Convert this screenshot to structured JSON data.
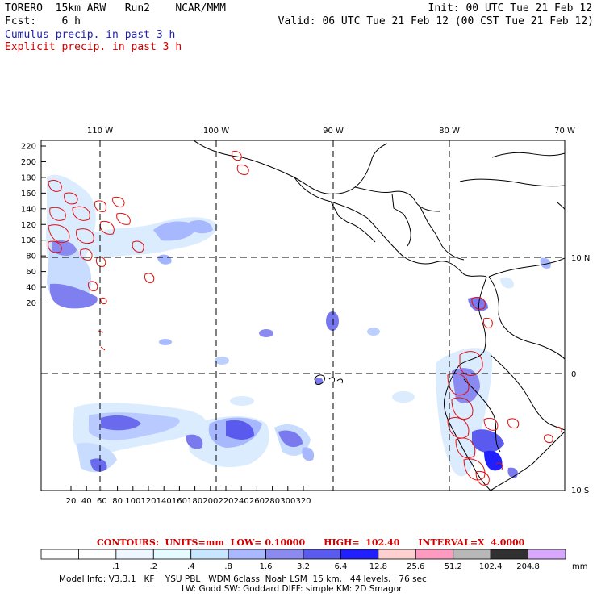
{
  "header": {
    "model": "TORERO  15km ARW   Run2    NCAR/MMM",
    "init": "Init: 00 UTC Tue 21 Feb 12",
    "fcst": "Fcst:    6 h",
    "valid": "Valid: 06 UTC Tue 21 Feb 12 (00 CST Tue 21 Feb 12)",
    "legend_cumulus": "Cumulus precip. in past 3 h",
    "legend_explicit": "Explicit precip. in past 3 h"
  },
  "map": {
    "lon_labels": [
      "110 W",
      "100 W",
      "90 W",
      "80 W",
      "70 W"
    ],
    "lat_labels": [
      "10 N",
      "0",
      "10 S"
    ],
    "y_ticks": [
      "220",
      "200",
      "180",
      "160",
      "140",
      "120",
      "100",
      "80",
      "60",
      "40",
      "20"
    ],
    "x_ticks": [
      "20",
      "40",
      "60",
      "80",
      "100",
      "120",
      "140",
      "160",
      "180",
      "200",
      "220",
      "240",
      "260",
      "280",
      "300",
      "320"
    ]
  },
  "contours_note": "CONTOURS:  UNITS=mm  LOW= 0.10000      HIGH=  102.40      INTERVAL=X  4.0000",
  "colorbar": {
    "labels": [
      ".1",
      ".2",
      ".4",
      ".8",
      "1.6",
      "3.2",
      "6.4",
      "12.8",
      "25.6",
      "51.2",
      "102.4",
      "204.8"
    ],
    "unit": "mm",
    "colors": [
      "#ffffff",
      "#ffffff",
      "#eef7ff",
      "#e6fbff",
      "#c8e6ff",
      "#aab8ff",
      "#8a8af0",
      "#5a5aee",
      "#2020ff",
      "#ffd0d0",
      "#ff9ac0",
      "#b8b8b8",
      "#303030",
      "#d8a8ff"
    ]
  },
  "footer": {
    "line1": "Model Info: V3.3.1   KF    YSU PBL   WDM 6class  Noah LSM  15 km,   44 levels,   76 sec",
    "line2": "LW: Godd SW: Goddard DIFF: simple KM: 2D Smagor"
  }
}
